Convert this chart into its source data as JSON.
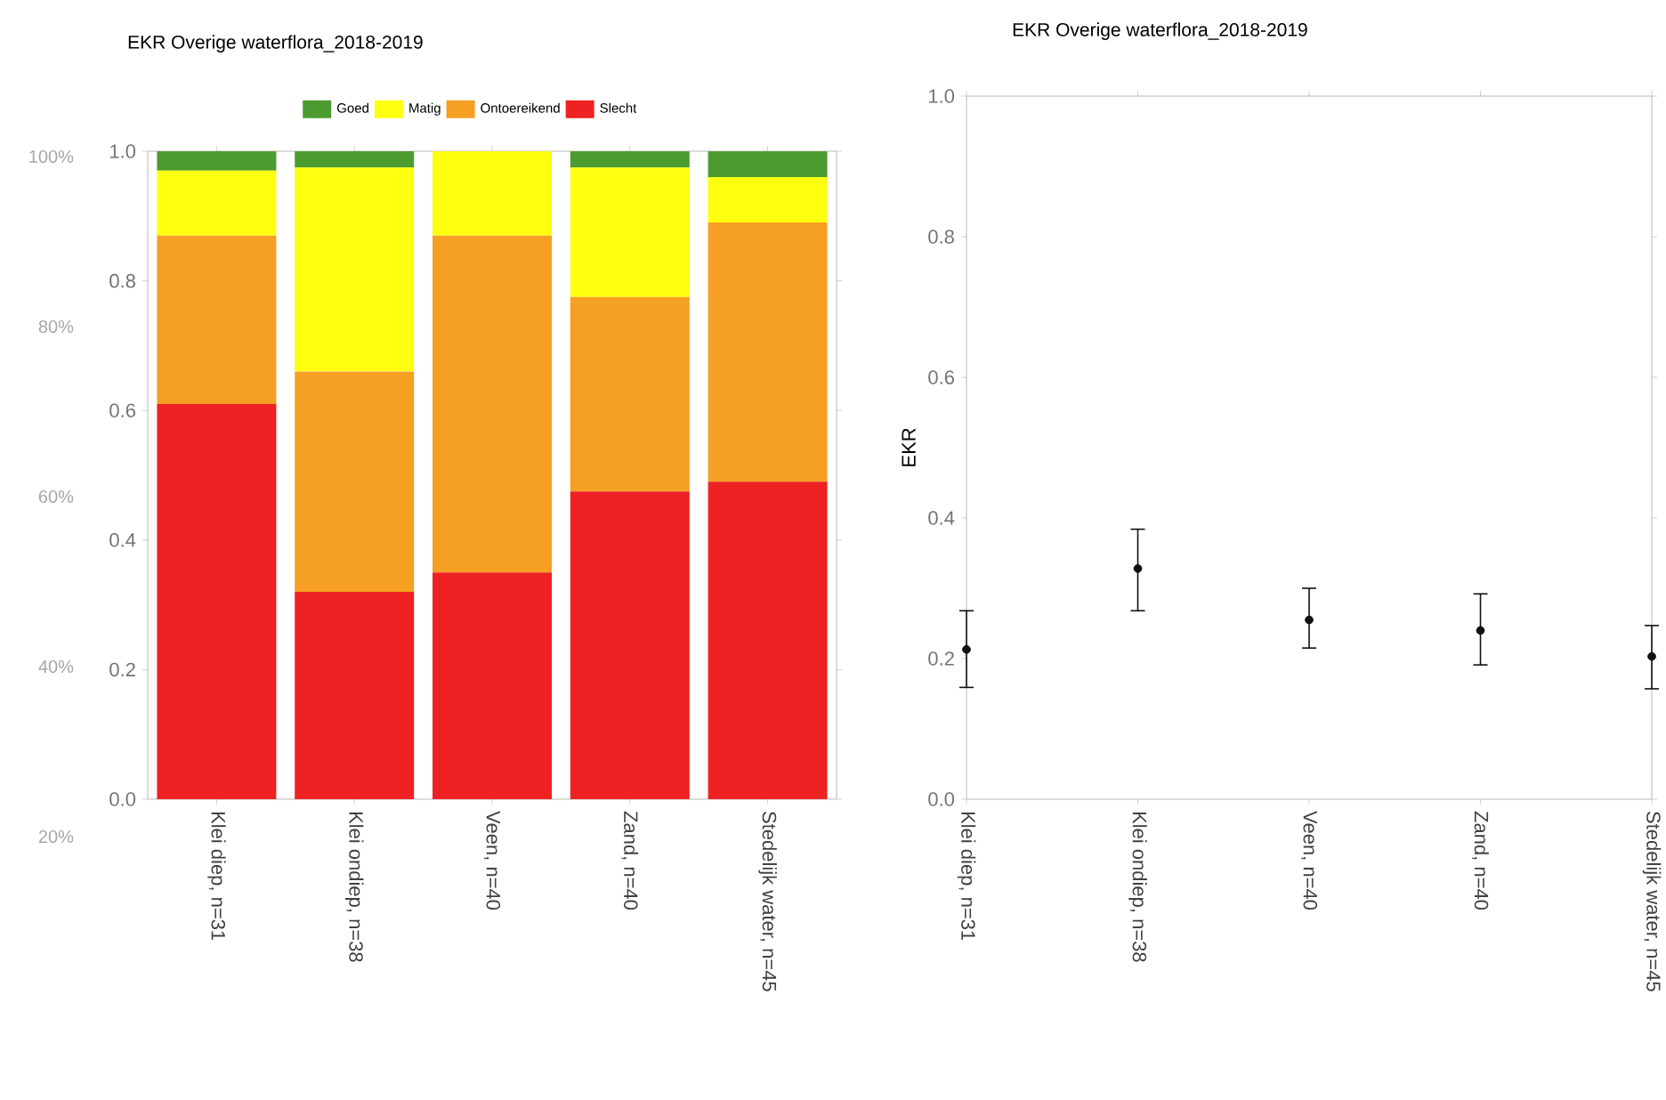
{
  "chart_data": [
    {
      "type": "bar",
      "title": "EKR Overige waterflora_2018-2019",
      "stacked": true,
      "legend": "top",
      "categories": [
        "Klei diep, n=31",
        "Klei ondiep, n=38",
        "Veen, n=40",
        "Zand, n=40",
        "Stedelijk water, n=45"
      ],
      "series": [
        {
          "name": "Slecht",
          "color": "#ee2222",
          "values": [
            0.61,
            0.32,
            0.35,
            0.475,
            0.49
          ]
        },
        {
          "name": "Ontoereikend",
          "color": "#f5a023",
          "values": [
            0.26,
            0.34,
            0.52,
            0.3,
            0.4
          ]
        },
        {
          "name": "Matig",
          "color": "#ffff10",
          "values": [
            0.1,
            0.315,
            0.13,
            0.2,
            0.07
          ]
        },
        {
          "name": "Goed",
          "color": "#4b9b30",
          "values": [
            0.03,
            0.025,
            0,
            0.025,
            0.04
          ]
        }
      ],
      "ylim": [
        0,
        1
      ],
      "yticks": [
        {
          "value": 0,
          "label": "0.0"
        },
        {
          "value": 0.2,
          "label": "0.2"
        },
        {
          "value": 0.4,
          "label": "0.4"
        },
        {
          "value": 0.6,
          "label": "0.6"
        },
        {
          "value": 0.8,
          "label": "0.8"
        },
        {
          "value": 1,
          "label": "1.0"
        }
      ],
      "annotations": [
        "100%",
        "80%",
        "60%",
        "40%",
        "20%"
      ]
    },
    {
      "type": "scatter",
      "title": "EKR Overige waterflora_2018-2019",
      "ylabel": "EKR",
      "marker": "circle",
      "categories": [
        "Klei diep, n=31",
        "Klei ondiep, n=38",
        "Veen, n=40",
        "Zand, n=40",
        "Stedelijk water, n=45"
      ],
      "values": [
        0.213,
        0.328,
        0.255,
        0.24,
        0.203
      ],
      "color": "#111111",
      "errors": [
        [
          0.159,
          0.268
        ],
        [
          0.268,
          0.384
        ],
        [
          0.215,
          0.3
        ],
        [
          0.191,
          0.292
        ],
        [
          0.157,
          0.247
        ]
      ],
      "ylim": [
        0,
        1
      ],
      "yticks": [
        {
          "value": 0,
          "label": "0.0"
        },
        {
          "value": 0.2,
          "label": "0.2"
        },
        {
          "value": 0.4,
          "label": "0.4"
        },
        {
          "value": 0.6,
          "label": "0.6"
        },
        {
          "value": 0.8,
          "label": "0.8"
        },
        {
          "value": 1,
          "label": "1.0"
        }
      ]
    }
  ]
}
